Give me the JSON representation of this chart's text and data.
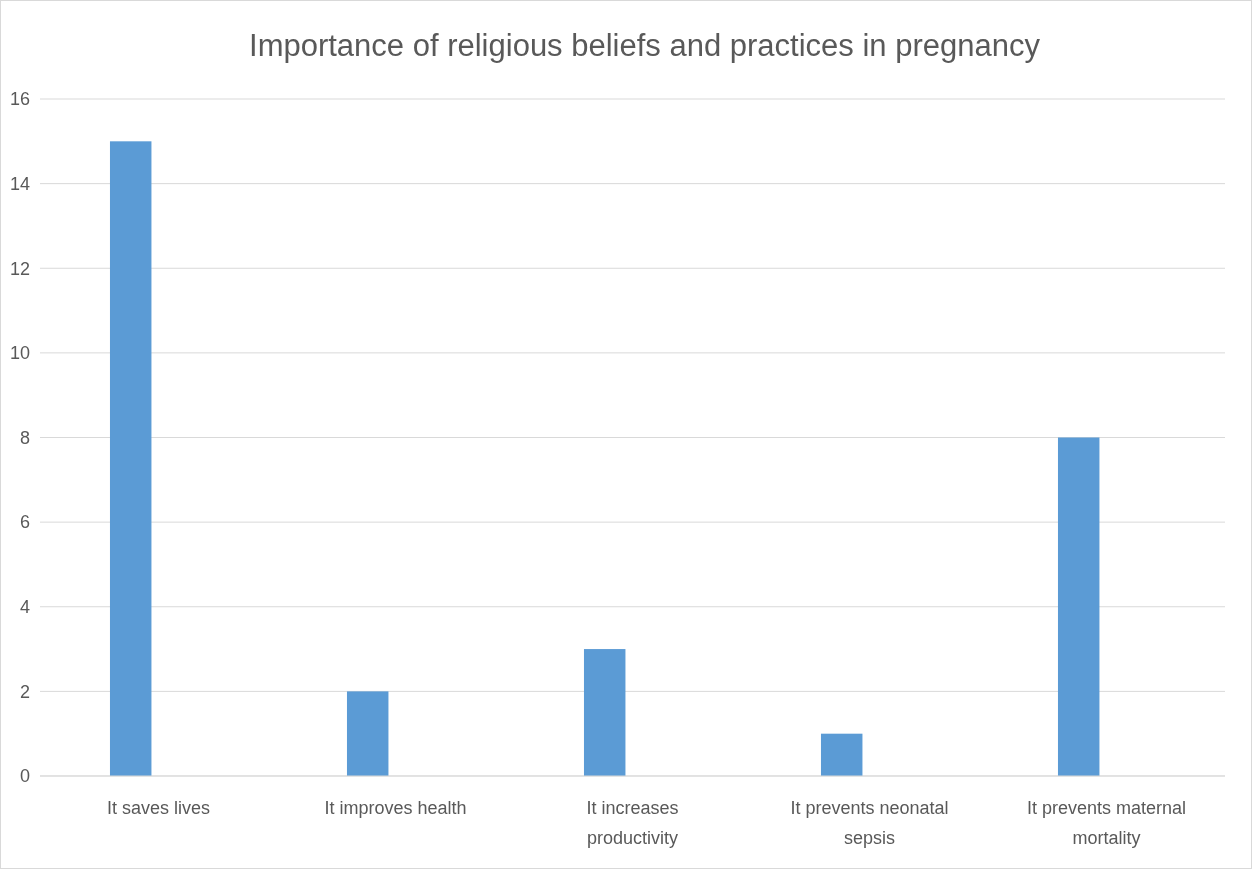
{
  "chart_data": {
    "type": "bar",
    "title": "Importance of religious beliefs and practices in pregnancy",
    "categories": [
      "It saves lives",
      "It improves health",
      "It increases productivity",
      "It prevents neonatal sepsis",
      "It prevents maternal mortality"
    ],
    "values": [
      15,
      2,
      3,
      1,
      8
    ],
    "color": "#5b9bd5",
    "ylim": [
      0,
      16
    ],
    "yticks": [
      0,
      2,
      4,
      6,
      8,
      10,
      12,
      14,
      16
    ],
    "grid": "y"
  }
}
